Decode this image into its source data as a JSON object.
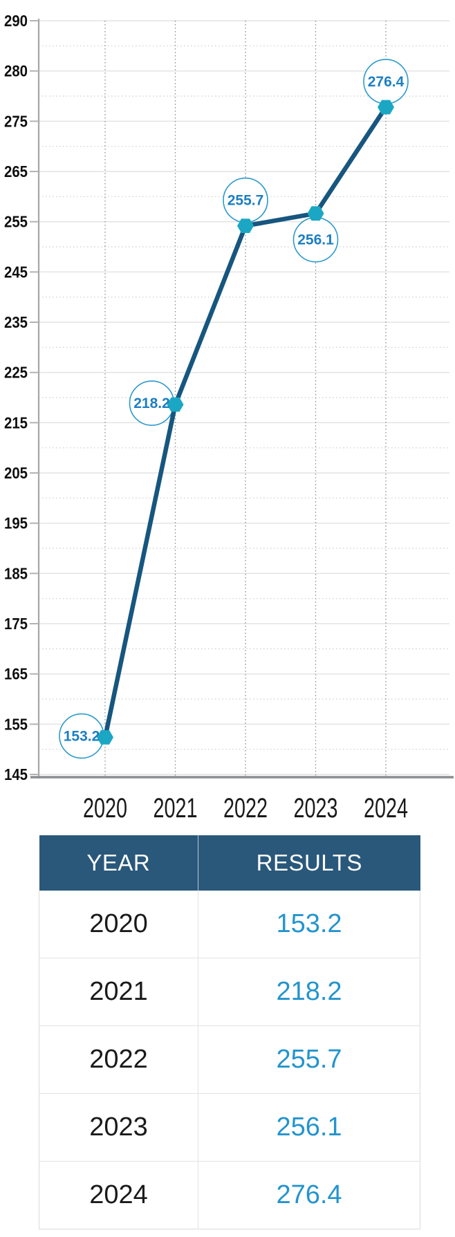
{
  "chart_data": {
    "type": "line",
    "title": "",
    "xlabel": "",
    "ylabel": "",
    "categories": [
      "2020",
      "2021",
      "2022",
      "2023",
      "2024"
    ],
    "values": [
      153.2,
      218.2,
      255.7,
      256.1,
      276.4
    ],
    "point_labels": [
      "153.2",
      "218.2",
      "255.7",
      "256.1",
      "276.4"
    ],
    "y_tick_labels": [
      "290",
      "280",
      "275",
      "265",
      "255",
      "245",
      "235",
      "225",
      "215",
      "205",
      "195",
      "185",
      "175",
      "165",
      "155",
      "145"
    ],
    "ylim": [
      145,
      290
    ],
    "grid": "horizontal-major-solid, horizontal-minor-dotted, vertical-year-dotted",
    "legend": "none",
    "colors": {
      "line": "#16567f",
      "marker": "#1ba7c4",
      "bubble_stroke": "#2b99cc",
      "bubble_text": "#1d7fc1"
    }
  },
  "table": {
    "headers": [
      "YEAR",
      "RESULTS"
    ],
    "rows": [
      [
        "2020",
        "153.2"
      ],
      [
        "2021",
        "218.2"
      ],
      [
        "2022",
        "255.7"
      ],
      [
        "2023",
        "256.1"
      ],
      [
        "2024",
        "276.4"
      ]
    ],
    "header_bg": "#2a587b",
    "result_color": "#2394cd"
  }
}
